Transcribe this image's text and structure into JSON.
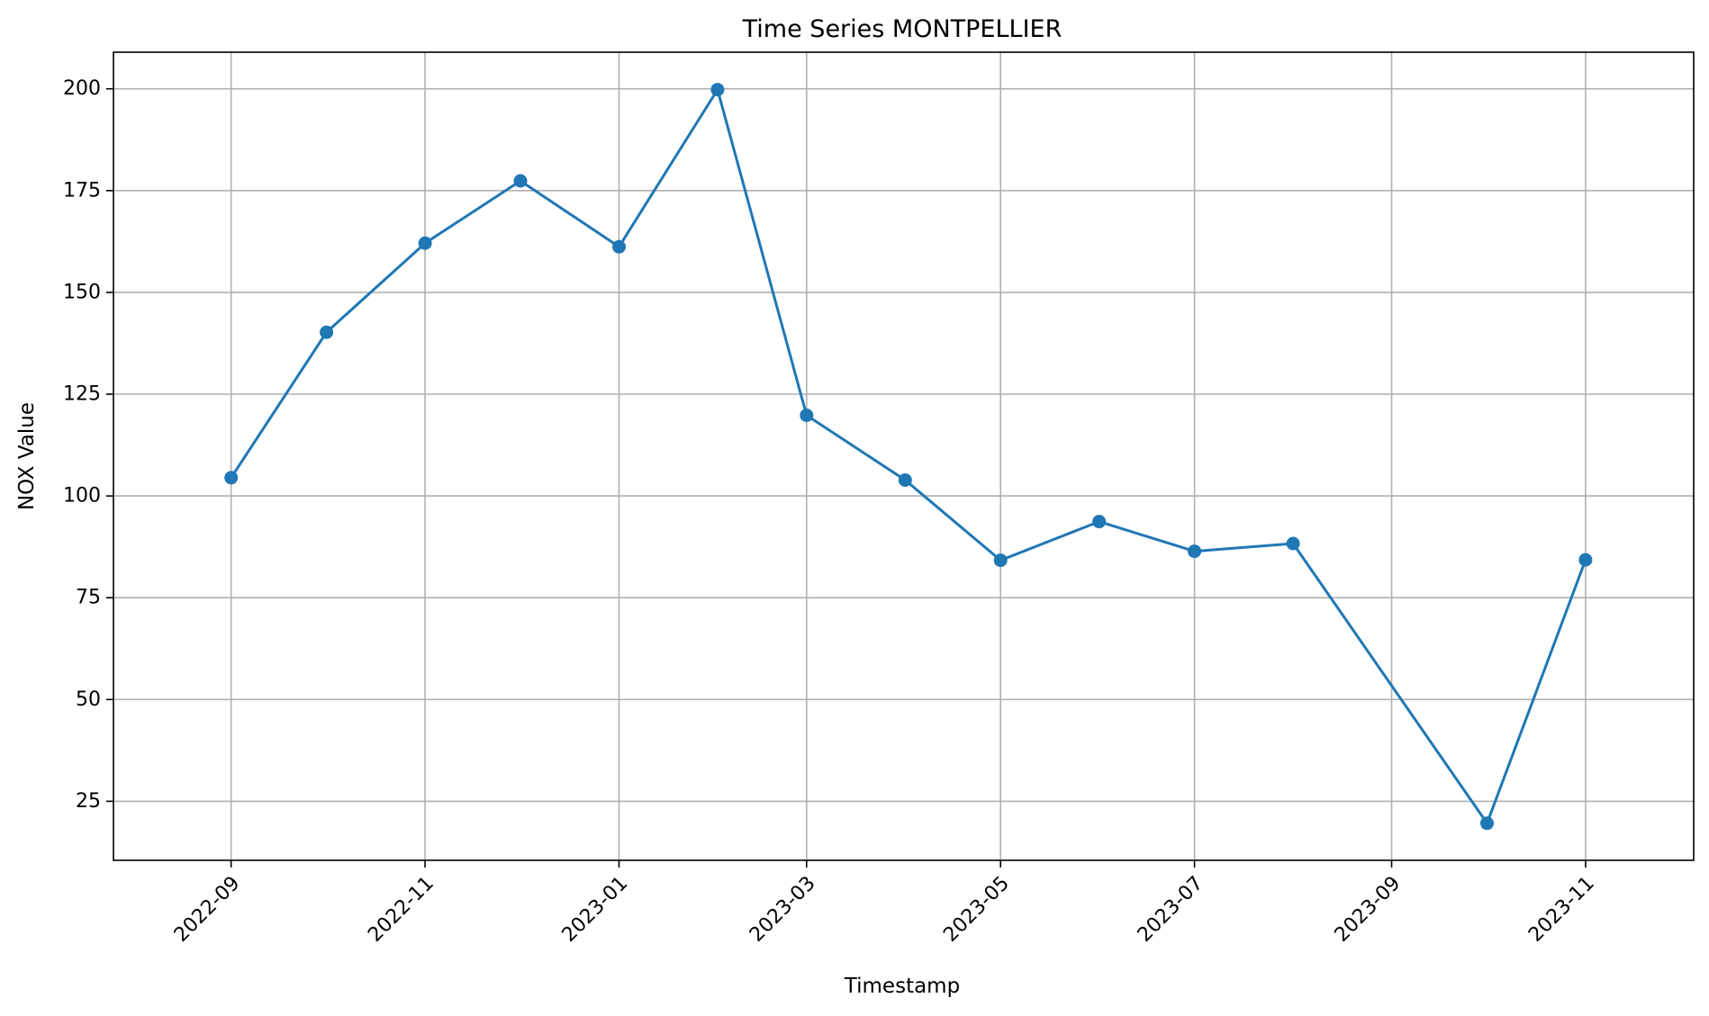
{
  "chart_data": {
    "type": "line",
    "title": "Time Series MONTPELLIER",
    "xlabel": "Timestamp",
    "ylabel": "NOX Value",
    "x_ticks": [
      "2022-09",
      "2022-11",
      "2023-01",
      "2023-03",
      "2023-05",
      "2023-07",
      "2023-09",
      "2023-11"
    ],
    "y_ticks": [
      25,
      50,
      75,
      100,
      125,
      150,
      175,
      200
    ],
    "xlim": [
      "2022-07-26",
      "2023-12-05"
    ],
    "ylim": [
      10.5,
      209
    ],
    "grid": true,
    "series": [
      {
        "color": "#1f77b4",
        "marker": "circle",
        "x": [
          "2022-09-01",
          "2022-10-01",
          "2022-11-01",
          "2022-12-01",
          "2023-01-01",
          "2023-02-01",
          "2023-03-01",
          "2023-04-01",
          "2023-05-01",
          "2023-06-01",
          "2023-07-01",
          "2023-08-01",
          "2023-10-01",
          "2023-11-01"
        ],
        "y": [
          104.5,
          140.2,
          162.1,
          177.4,
          161.2,
          199.8,
          119.8,
          103.9,
          84.2,
          93.7,
          86.4,
          88.3,
          19.6,
          84.3
        ]
      }
    ]
  }
}
